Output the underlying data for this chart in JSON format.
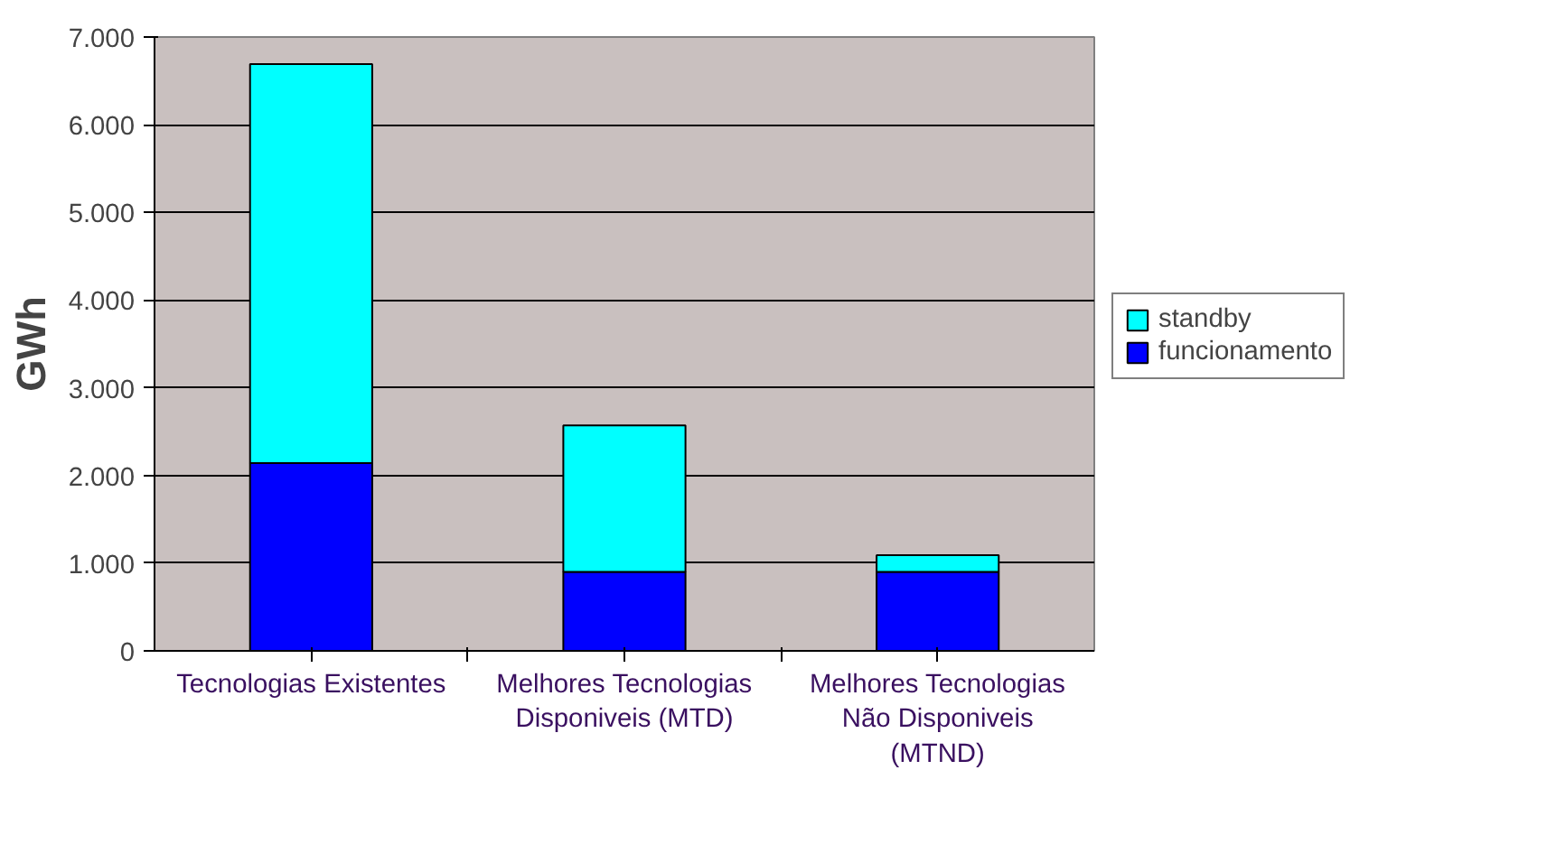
{
  "chart_data": {
    "type": "bar",
    "stacked": true,
    "ylabel": "GWh",
    "categories": [
      "Tecnologias Existentes",
      "Melhores Tecnologias\nDisponiveis (MTD)",
      "Melhores Tecnologias\nNão Disponiveis\n(MTND)"
    ],
    "series": [
      {
        "name": "funcionamento",
        "color": "#0000ff",
        "values": [
          2140,
          900,
          900
        ]
      },
      {
        "name": "standby",
        "color": "#00ffff",
        "values": [
          4550,
          1670,
          190
        ]
      }
    ],
    "ylim": [
      0,
      7000
    ],
    "yticks": [
      0,
      {
        "value": 1000,
        "label": "1.000"
      },
      {
        "value": 2000,
        "label": "2.000"
      },
      {
        "value": 3000,
        "label": "3.000"
      },
      {
        "value": 4000,
        "label": "4.000"
      },
      {
        "value": 5000,
        "label": "5.000"
      },
      {
        "value": 6000,
        "label": "6.000"
      },
      {
        "value": 7000,
        "label": "7.000"
      }
    ],
    "grid": "y",
    "legend": "right"
  }
}
